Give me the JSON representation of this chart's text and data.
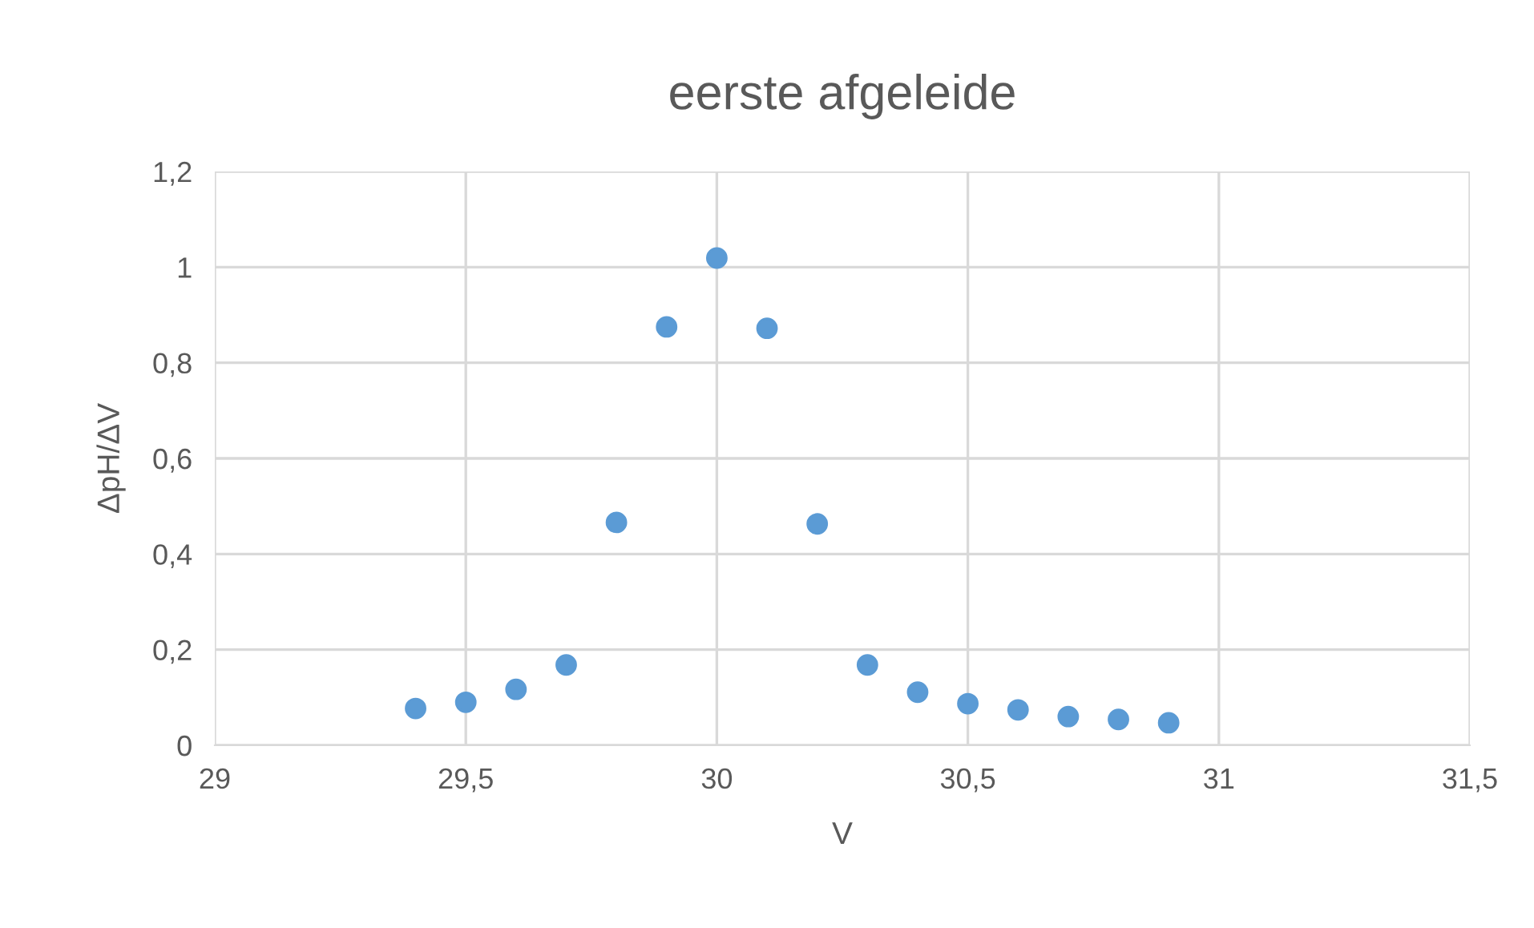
{
  "chart_data": {
    "type": "scatter",
    "title": "eerste afgeleide",
    "xlabel": "V",
    "ylabel": "ΔpH/ΔV",
    "x": [
      29.4,
      29.5,
      29.6,
      29.7,
      29.8,
      29.9,
      30.0,
      30.1,
      30.2,
      30.3,
      30.4,
      30.5,
      30.6,
      30.7,
      30.8,
      30.9
    ],
    "series": [
      {
        "color": "#5b9bd5",
        "values": [
          0.077,
          0.09,
          0.117,
          0.168,
          0.466,
          0.875,
          1.019,
          0.872,
          0.463,
          0.168,
          0.111,
          0.087,
          0.074,
          0.06,
          0.054,
          0.047
        ]
      }
    ],
    "xlim": [
      29,
      31.5
    ],
    "ylim": [
      0,
      1.2
    ],
    "xticks": [
      29,
      {
        "value": 29.5,
        "label": "29,5"
      },
      30,
      {
        "value": 30.5,
        "label": "30,5"
      },
      31,
      {
        "value": 31.5,
        "label": "31,5"
      }
    ],
    "yticks": [
      0,
      {
        "value": 0.2,
        "label": "0,2"
      },
      {
        "value": 0.4,
        "label": "0,4"
      },
      {
        "value": 0.6,
        "label": "0,6"
      },
      {
        "value": 0.8,
        "label": "0,8"
      },
      1,
      {
        "value": 1.2,
        "label": "1,2"
      }
    ],
    "grid": true,
    "marker": "circle",
    "legend": false
  }
}
